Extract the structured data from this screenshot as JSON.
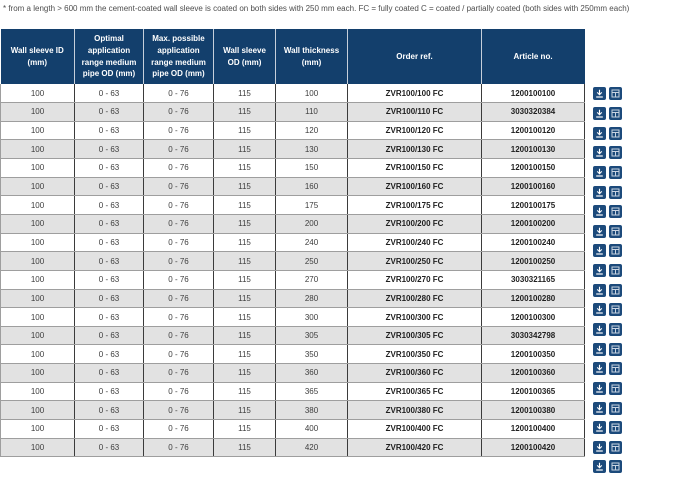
{
  "note": "* from a length > 600 mm the cement-coated wall sleeve is coated on both sides with 250 mm each. FC = fully coated C = coated / partially coated (both sides with 250mm each)",
  "table": {
    "headers": [
      "Wall sleeve ID (mm)",
      "Optimal application range medium pipe OD (mm)",
      "Max. possible application range medium pipe OD (mm)",
      "Wall sleeve OD (mm)",
      "Wall thickness (mm)",
      "Order ref.",
      "Article no."
    ],
    "rows": [
      {
        "wall_sleeve_id": "100",
        "optimal_range": "0 - 63",
        "max_range": "0 - 76",
        "wall_sleeve_od": "115",
        "wall_thickness": "100",
        "order_ref": "ZVR100/100 FC",
        "article_no": "1200100100"
      },
      {
        "wall_sleeve_id": "100",
        "optimal_range": "0 - 63",
        "max_range": "0 - 76",
        "wall_sleeve_od": "115",
        "wall_thickness": "110",
        "order_ref": "ZVR100/110 FC",
        "article_no": "3030320384"
      },
      {
        "wall_sleeve_id": "100",
        "optimal_range": "0 - 63",
        "max_range": "0 - 76",
        "wall_sleeve_od": "115",
        "wall_thickness": "120",
        "order_ref": "ZVR100/120 FC",
        "article_no": "1200100120"
      },
      {
        "wall_sleeve_id": "100",
        "optimal_range": "0 - 63",
        "max_range": "0 - 76",
        "wall_sleeve_od": "115",
        "wall_thickness": "130",
        "order_ref": "ZVR100/130 FC",
        "article_no": "1200100130"
      },
      {
        "wall_sleeve_id": "100",
        "optimal_range": "0 - 63",
        "max_range": "0 - 76",
        "wall_sleeve_od": "115",
        "wall_thickness": "150",
        "order_ref": "ZVR100/150 FC",
        "article_no": "1200100150"
      },
      {
        "wall_sleeve_id": "100",
        "optimal_range": "0 - 63",
        "max_range": "0 - 76",
        "wall_sleeve_od": "115",
        "wall_thickness": "160",
        "order_ref": "ZVR100/160 FC",
        "article_no": "1200100160"
      },
      {
        "wall_sleeve_id": "100",
        "optimal_range": "0 - 63",
        "max_range": "0 - 76",
        "wall_sleeve_od": "115",
        "wall_thickness": "175",
        "order_ref": "ZVR100/175 FC",
        "article_no": "1200100175"
      },
      {
        "wall_sleeve_id": "100",
        "optimal_range": "0 - 63",
        "max_range": "0 - 76",
        "wall_sleeve_od": "115",
        "wall_thickness": "200",
        "order_ref": "ZVR100/200 FC",
        "article_no": "1200100200"
      },
      {
        "wall_sleeve_id": "100",
        "optimal_range": "0 - 63",
        "max_range": "0 - 76",
        "wall_sleeve_od": "115",
        "wall_thickness": "240",
        "order_ref": "ZVR100/240 FC",
        "article_no": "1200100240"
      },
      {
        "wall_sleeve_id": "100",
        "optimal_range": "0 - 63",
        "max_range": "0 - 76",
        "wall_sleeve_od": "115",
        "wall_thickness": "250",
        "order_ref": "ZVR100/250 FC",
        "article_no": "1200100250"
      },
      {
        "wall_sleeve_id": "100",
        "optimal_range": "0 - 63",
        "max_range": "0 - 76",
        "wall_sleeve_od": "115",
        "wall_thickness": "270",
        "order_ref": "ZVR100/270 FC",
        "article_no": "3030321165"
      },
      {
        "wall_sleeve_id": "100",
        "optimal_range": "0 - 63",
        "max_range": "0 - 76",
        "wall_sleeve_od": "115",
        "wall_thickness": "280",
        "order_ref": "ZVR100/280 FC",
        "article_no": "1200100280"
      },
      {
        "wall_sleeve_id": "100",
        "optimal_range": "0 - 63",
        "max_range": "0 - 76",
        "wall_sleeve_od": "115",
        "wall_thickness": "300",
        "order_ref": "ZVR100/300 FC",
        "article_no": "1200100300"
      },
      {
        "wall_sleeve_id": "100",
        "optimal_range": "0 - 63",
        "max_range": "0 - 76",
        "wall_sleeve_od": "115",
        "wall_thickness": "305",
        "order_ref": "ZVR100/305 FC",
        "article_no": "3030342798"
      },
      {
        "wall_sleeve_id": "100",
        "optimal_range": "0 - 63",
        "max_range": "0 - 76",
        "wall_sleeve_od": "115",
        "wall_thickness": "350",
        "order_ref": "ZVR100/350 FC",
        "article_no": "1200100350"
      },
      {
        "wall_sleeve_id": "100",
        "optimal_range": "0 - 63",
        "max_range": "0 - 76",
        "wall_sleeve_od": "115",
        "wall_thickness": "360",
        "order_ref": "ZVR100/360 FC",
        "article_no": "1200100360"
      },
      {
        "wall_sleeve_id": "100",
        "optimal_range": "0 - 63",
        "max_range": "0 - 76",
        "wall_sleeve_od": "115",
        "wall_thickness": "365",
        "order_ref": "ZVR100/365 FC",
        "article_no": "1200100365"
      },
      {
        "wall_sleeve_id": "100",
        "optimal_range": "0 - 63",
        "max_range": "0 - 76",
        "wall_sleeve_od": "115",
        "wall_thickness": "380",
        "order_ref": "ZVR100/380 FC",
        "article_no": "1200100380"
      },
      {
        "wall_sleeve_id": "100",
        "optimal_range": "0 - 63",
        "max_range": "0 - 76",
        "wall_sleeve_od": "115",
        "wall_thickness": "400",
        "order_ref": "ZVR100/400 FC",
        "article_no": "1200100400"
      },
      {
        "wall_sleeve_id": "100",
        "optimal_range": "0 - 63",
        "max_range": "0 - 76",
        "wall_sleeve_od": "115",
        "wall_thickness": "420",
        "order_ref": "ZVR100/420 FC",
        "article_no": "1200100420"
      }
    ]
  },
  "icons": {
    "download": "download-icon",
    "datasheet": "datasheet-icon"
  },
  "colors": {
    "header_bg": "#133f6c",
    "icon_bg": "#1c4a7b",
    "stripe": "#e2e2e2"
  }
}
